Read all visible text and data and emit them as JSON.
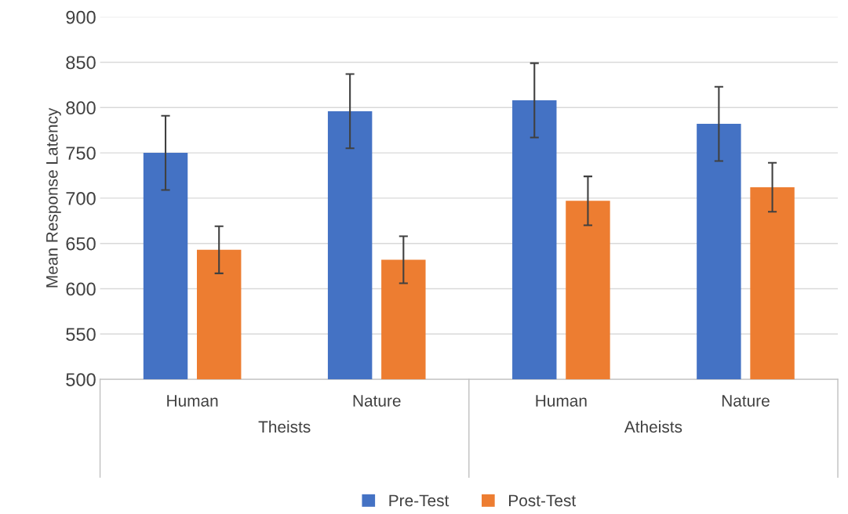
{
  "chart_data": {
    "type": "bar",
    "ylabel": "Mean Response Latency",
    "categories": [
      "Human",
      "Nature",
      "Human",
      "Nature"
    ],
    "series": [
      {
        "name": "Pre-Test",
        "color": "#4472c4",
        "values": [
          750,
          796,
          808,
          782
        ],
        "errors": [
          41,
          41,
          41,
          41
        ]
      },
      {
        "name": "Post-Test",
        "color": "#ed7d31",
        "values": [
          643,
          632,
          697,
          712
        ],
        "errors": [
          26,
          26,
          27,
          27
        ]
      }
    ],
    "annotations": [
      "Theists",
      "Atheists"
    ],
    "ylim": [
      500,
      900
    ],
    "yticks": [
      500,
      550,
      600,
      650,
      700,
      750,
      800,
      850,
      900
    ],
    "grid": "y",
    "legend": "bottom"
  }
}
